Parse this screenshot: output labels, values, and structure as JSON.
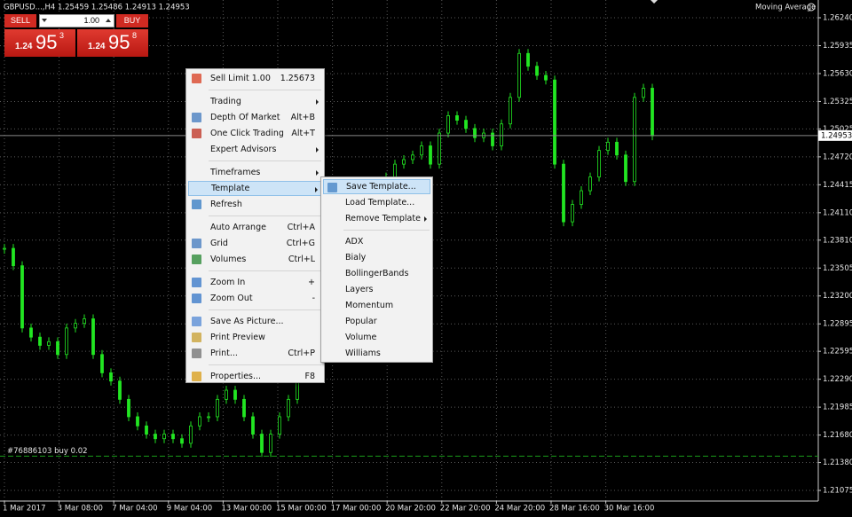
{
  "chart": {
    "type": "candlestick",
    "symbol_info": "GBPUSD...,H4  1.25459 1.25486 1.24913 1.24953",
    "indicator": "Moving Average",
    "ylim": [
      1.20959,
      1.26434
    ],
    "yticks": [
      {
        "value": 1.2624,
        "label": "1.26240"
      },
      1.25935,
      {
        "value": 1.2563,
        "label": "1.25630"
      },
      1.25325,
      1.25025,
      {
        "value": 1.2472,
        "label": "1.24720"
      },
      1.24415,
      {
        "value": 1.2411,
        "label": "1.24110"
      },
      {
        "value": 1.2381,
        "label": "1.23810"
      },
      1.23505,
      {
        "value": 1.232,
        "label": "1.23200"
      },
      1.22895,
      1.22595,
      {
        "value": 1.2229,
        "label": "1.22290"
      },
      1.21985,
      {
        "value": 1.2168,
        "label": "1.21680"
      },
      {
        "value": 1.2138,
        "label": "1.21380"
      },
      1.21075
    ],
    "xtick_labels": [
      "1 Mar 2017",
      "3 Mar 08:00",
      "7 Mar 04:00",
      "9 Mar 04:00",
      "13 Mar 00:00",
      "15 Mar 00:00",
      "17 Mar 00:00",
      "20 Mar 20:00",
      "22 Mar 20:00",
      "24 Mar 20:00",
      "28 Mar 16:00",
      "30 Mar 16:00"
    ],
    "closes": [
      1.2372,
      1.2353,
      1.2285,
      1.2275,
      1.2266,
      1.227,
      1.2256,
      1.2285,
      1.229,
      1.2295,
      1.2256,
      1.2236,
      1.2227,
      1.2207,
      1.2188,
      1.2178,
      1.2169,
      1.2164,
      1.2169,
      1.2164,
      1.2159,
      1.2178,
      1.2188,
      1.2188,
      1.2207,
      1.2217,
      1.2207,
      1.2188,
      1.2169,
      1.2149,
      1.2169,
      1.2188,
      1.2207,
      1.2236,
      1.2256,
      1.2285,
      1.2314,
      1.2333,
      1.2353,
      1.2372,
      1.2391,
      1.2411,
      1.243,
      1.245,
      1.2464,
      1.2469,
      1.2474,
      1.2484,
      1.2464,
      1.2498,
      1.2517,
      1.2512,
      1.2503,
      1.2493,
      1.2498,
      1.2484,
      1.2508,
      1.2537,
      1.2585,
      1.2571,
      1.2561,
      1.2556,
      1.2464,
      1.2401,
      1.242,
      1.2435,
      1.245,
      1.2479,
      1.2488,
      1.2474,
      1.2445,
      1.2537,
      1.2547,
      1.2495
    ],
    "color": "#22e622",
    "grid": true,
    "current_price": 1.24953,
    "order_label": "#76886103 buy 0.02",
    "order_price": 1.2145
  },
  "trade_panel": {
    "sell": "SELL",
    "buy": "BUY",
    "lot": "1.00",
    "sell_price": {
      "big": "1.24",
      "pips": "95",
      "point": "3"
    },
    "buy_price": {
      "big": "1.24",
      "pips": "95",
      "point": "8"
    }
  },
  "context_menu": {
    "groups": [
      [
        {
          "label": "Sell Limit 1.00",
          "shortcut": "1.25673"
        }
      ],
      [
        {
          "label": "Trading",
          "submenu": true
        },
        {
          "label": "Depth Of Market",
          "shortcut": "Alt+B"
        },
        {
          "label": "One Click Trading",
          "shortcut": "Alt+T"
        },
        {
          "label": "Expert Advisors",
          "submenu": true
        }
      ],
      [
        {
          "label": "Timeframes",
          "submenu": true
        },
        {
          "label": "Template",
          "submenu": true,
          "highlighted": true
        },
        {
          "label": "Refresh"
        }
      ],
      [
        {
          "label": "Auto Arrange",
          "shortcut": "Ctrl+A"
        },
        {
          "label": "Grid",
          "shortcut": "Ctrl+G"
        },
        {
          "label": "Volumes",
          "shortcut": "Ctrl+L"
        }
      ],
      [
        {
          "label": "Zoom In",
          "shortcut": "+"
        },
        {
          "label": "Zoom Out",
          "shortcut": "-"
        }
      ],
      [
        {
          "label": "Save As Picture..."
        },
        {
          "label": "Print Preview"
        },
        {
          "label": "Print...",
          "shortcut": "Ctrl+P"
        }
      ],
      [
        {
          "label": "Properties...",
          "shortcut": "F8"
        }
      ]
    ]
  },
  "template_menu": {
    "groups": [
      [
        {
          "label": "Save Template...",
          "highlighted": true
        },
        {
          "label": "Load Template..."
        },
        {
          "label": "Remove Template",
          "submenu": true
        }
      ],
      [
        {
          "label": "ADX"
        },
        {
          "label": "Bialy"
        },
        {
          "label": "BollingerBands"
        },
        {
          "label": "Layers"
        },
        {
          "label": "Momentum"
        },
        {
          "label": "Popular"
        },
        {
          "label": "Volume"
        },
        {
          "label": "Williams"
        }
      ]
    ]
  }
}
